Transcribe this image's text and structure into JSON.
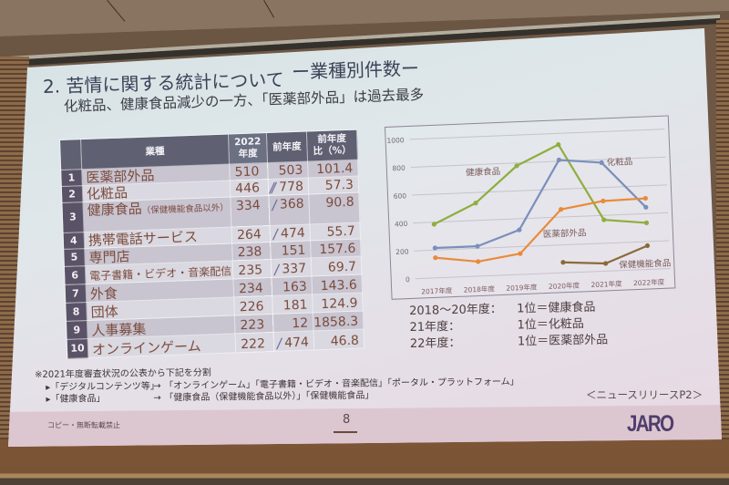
{
  "slide": {
    "title": "2. 苦情に関する統計について",
    "title_tag": "ー業種別件数ー",
    "lead": "化粧品、健康食品減少の一方、「医薬部外品」は過去最多",
    "table": {
      "headers": {
        "rank": "",
        "category": "業種",
        "current_line1": "2022",
        "current_line2": "年度",
        "previous": "前年度",
        "ratio_line1": "前年度",
        "ratio_line2": "比（%）"
      },
      "rows": [
        {
          "rank": "1",
          "category": "医薬部外品",
          "category_note": "",
          "current": "510",
          "mark": "",
          "previous": "503",
          "ratio_pct": "101.4"
        },
        {
          "rank": "2",
          "category": "化粧品",
          "category_note": "",
          "current": "446",
          "mark": "//",
          "previous": "778",
          "ratio_pct": "57.3"
        },
        {
          "rank": "3",
          "category": "健康食品",
          "category_note": "（保健機能食品以外）",
          "current": "334",
          "mark": "/",
          "previous": "368",
          "ratio_pct": "90.8"
        },
        {
          "rank": "4",
          "category": "携帯電話サービス",
          "category_note": "",
          "current": "264",
          "mark": "/",
          "previous": "474",
          "ratio_pct": "55.7"
        },
        {
          "rank": "5",
          "category": "専門店",
          "category_note": "",
          "current": "238",
          "mark": "",
          "previous": "151",
          "ratio_pct": "157.6"
        },
        {
          "rank": "6",
          "category": "電子書籍・ビデオ・音楽配信",
          "category_note": "",
          "current": "235",
          "mark": "/",
          "previous": "337",
          "ratio_pct": "69.7"
        },
        {
          "rank": "7",
          "category": "外食",
          "category_note": "",
          "current": "234",
          "mark": "",
          "previous": "163",
          "ratio_pct": "143.6"
        },
        {
          "rank": "8",
          "category": "団体",
          "category_note": "",
          "current": "226",
          "mark": "",
          "previous": "181",
          "ratio_pct": "124.9"
        },
        {
          "rank": "9",
          "category": "人事募集",
          "category_note": "",
          "current": "223",
          "mark": "",
          "previous": "12",
          "ratio_pct": "1858.3"
        },
        {
          "rank": "10",
          "category": "オンラインゲーム",
          "category_note": "",
          "current": "222",
          "mark": "/",
          "previous": "474",
          "ratio_pct": "46.8"
        }
      ]
    },
    "ranking": [
      {
        "period": "2018～20年度：",
        "result": "1位＝健康食品"
      },
      {
        "period": "21年度：",
        "result": "1位＝化粧品"
      },
      {
        "period": "22年度：",
        "result": "1位＝医薬部外品"
      }
    ],
    "notes": {
      "heading": "※2021年度審査状況の公表から下記を分割",
      "items": [
        {
          "from": "▸「デジタルコンテンツ等」",
          "arrow": "→",
          "to": "「オンラインゲーム」「電子書籍・ビデオ・音楽配信」「ポータル・プラットフォーム」"
        },
        {
          "from": "▸「健康食品」",
          "arrow": "→",
          "to": "「健康食品（保健機能食品以外）」「保健機能食品」"
        }
      ]
    },
    "source": "＜ニュースリリースP2＞",
    "footer": {
      "copyright": "コピー・無断転載禁止",
      "page": "8",
      "logo": "JARO"
    }
  },
  "chart_data": {
    "type": "line",
    "title": "",
    "xlabel": "",
    "ylabel": "",
    "categories": [
      "2017年度",
      "2018年度",
      "2019年度",
      "2020年度",
      "2021年度",
      "2022年度"
    ],
    "series": [
      {
        "name": "健康食品",
        "color": "#8fae3e",
        "values": [
          385,
          525,
          780,
          920,
          368,
          334
        ]
      },
      {
        "name": "化粧品",
        "color": "#7b8fbb",
        "values": [
          215,
          215,
          320,
          810,
          778,
          446
        ]
      },
      {
        "name": "医薬部外品",
        "color": "#ea8a3a",
        "values": [
          145,
          105,
          150,
          455,
          503,
          510
        ]
      },
      {
        "name": "保健機能食品",
        "color": "#8a6a3c",
        "values": [
          null,
          null,
          null,
          75,
          55,
          170
        ]
      }
    ],
    "yticks": [
      0,
      200,
      400,
      600,
      800,
      1000
    ],
    "ylim": [
      0,
      1000
    ],
    "grid": true,
    "legend_position": "inline labels next to lines"
  }
}
